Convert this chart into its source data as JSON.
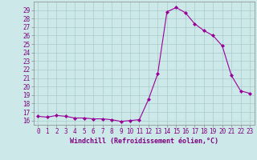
{
  "hours": [
    0,
    1,
    2,
    3,
    4,
    5,
    6,
    7,
    8,
    9,
    10,
    11,
    12,
    13,
    14,
    15,
    16,
    17,
    18,
    19,
    20,
    21,
    22,
    23
  ],
  "values": [
    16.5,
    16.4,
    16.6,
    16.5,
    16.3,
    16.3,
    16.2,
    16.2,
    16.1,
    15.9,
    16.0,
    16.1,
    18.5,
    21.5,
    28.8,
    29.3,
    28.7,
    27.4,
    26.6,
    26.0,
    24.8,
    21.3,
    19.5,
    19.2
  ],
  "line_color": "#990099",
  "marker": "D",
  "marker_size": 2,
  "bg_color": "#cce8e8",
  "grid_color": "#aacccc",
  "xlabel": "Windchill (Refroidissement éolien,°C)",
  "xlabel_color": "#800080",
  "ylim": [
    15.5,
    30.0
  ],
  "yticks": [
    16,
    17,
    18,
    19,
    20,
    21,
    22,
    23,
    24,
    25,
    26,
    27,
    28,
    29
  ],
  "xlim": [
    -0.5,
    23.5
  ],
  "xticks": [
    0,
    1,
    2,
    3,
    4,
    5,
    6,
    7,
    8,
    9,
    10,
    11,
    12,
    13,
    14,
    15,
    16,
    17,
    18,
    19,
    20,
    21,
    22,
    23
  ],
  "tick_fontsize": 5.5,
  "xlabel_fontsize": 6.0
}
